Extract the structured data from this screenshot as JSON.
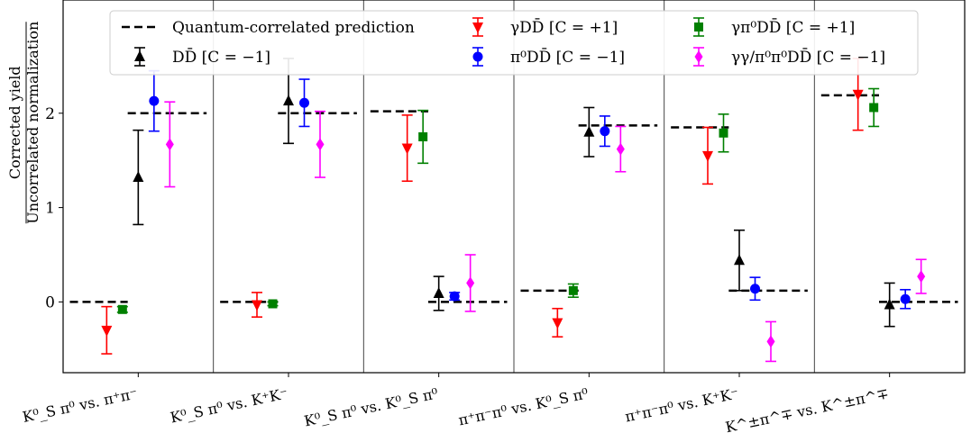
{
  "chart_data": {
    "type": "scatter",
    "title": "",
    "ylabel_numerator": "Corrected yield",
    "ylabel_denominator": "Uncorrelated normalization",
    "xlabel": "",
    "ylim": [
      -0.75,
      3.2
    ],
    "yticks": [
      0,
      1,
      2
    ],
    "grid": false,
    "legend_position": "top-center",
    "categories": [
      "K⁰_S π⁰ vs. π⁺π⁻",
      "K⁰_S π⁰ vs. K⁺K⁻",
      "K⁰_S π⁰ vs. K⁰_S π⁰",
      "π⁺π⁻π⁰ vs. K⁰_S π⁰",
      "π⁺π⁻π⁰ vs. K⁺K⁻",
      "K^±π^∓ vs. K^±π^∓"
    ],
    "predictions": [
      {
        "category": 0,
        "from": -0.65,
        "to": -0.1,
        "value": 0.0
      },
      {
        "category": 0,
        "from": -0.1,
        "to": 0.65,
        "value": 2.0
      },
      {
        "category": 1,
        "from": -0.65,
        "to": -0.1,
        "value": 0.0
      },
      {
        "category": 1,
        "from": -0.1,
        "to": 0.65,
        "value": 2.0
      },
      {
        "category": 2,
        "from": -0.65,
        "to": -0.1,
        "value": 2.02
      },
      {
        "category": 2,
        "from": -0.1,
        "to": 0.65,
        "value": 0.0
      },
      {
        "category": 3,
        "from": -0.65,
        "to": -0.1,
        "value": 0.12
      },
      {
        "category": 3,
        "from": -0.1,
        "to": 0.65,
        "value": 1.87
      },
      {
        "category": 4,
        "from": -0.65,
        "to": -0.1,
        "value": 1.85
      },
      {
        "category": 4,
        "from": -0.1,
        "to": 0.65,
        "value": 0.12
      },
      {
        "category": 5,
        "from": -0.65,
        "to": -0.1,
        "value": 2.19
      },
      {
        "category": 5,
        "from": -0.1,
        "to": 0.65,
        "value": 0.0
      }
    ],
    "legend": {
      "prediction": "Quantum-correlated prediction",
      "entries": [
        {
          "key": "DDbar",
          "name": "DD̄ [C = −1]"
        },
        {
          "key": "gDD",
          "name": "γDD̄ [C = +1]"
        },
        {
          "key": "pi0DD",
          "name": "π⁰DD̄ [C = −1]"
        },
        {
          "key": "gpi0DD",
          "name": "γπ⁰DD̄ [C = +1]"
        },
        {
          "key": "ggDD",
          "name": "γγ/π⁰π⁰DD̄ [C = −1]"
        }
      ]
    },
    "series": [
      {
        "key": "gDD",
        "color": "#ff0000",
        "marker": "triangle-down",
        "offsets": [
          -0.3,
          -0.3,
          -0.3,
          -0.3,
          -0.3,
          -0.3
        ],
        "values": [
          -0.3,
          -0.03,
          1.63,
          -0.22,
          1.55,
          2.2
        ],
        "errors": [
          0.25,
          0.13,
          0.35,
          0.15,
          0.3,
          0.38
        ]
      },
      {
        "key": "gpi0DD",
        "color": "#008000",
        "marker": "square",
        "offsets": [
          -0.15,
          -0.15,
          -0.15,
          -0.15,
          -0.15,
          -0.15
        ],
        "values": [
          -0.08,
          -0.02,
          1.75,
          0.12,
          1.79,
          2.06
        ],
        "errors": [
          0.03,
          0.02,
          0.28,
          0.07,
          0.2,
          0.2
        ]
      },
      {
        "key": "DDbar",
        "color": "#000000",
        "marker": "triangle-up",
        "offsets": [
          0,
          0,
          0,
          0,
          0,
          0
        ],
        "values": [
          1.32,
          2.13,
          0.09,
          1.8,
          0.44,
          -0.03
        ],
        "errors": [
          0.5,
          0.45,
          0.18,
          0.26,
          0.32,
          0.23
        ]
      },
      {
        "key": "pi0DD",
        "color": "#0000ff",
        "marker": "circle",
        "offsets": [
          0.15,
          0.15,
          0.15,
          0.15,
          0.15,
          0.15
        ],
        "values": [
          2.13,
          2.11,
          0.06,
          1.81,
          0.14,
          0.03
        ],
        "errors": [
          0.32,
          0.25,
          0.04,
          0.16,
          0.12,
          0.1
        ]
      },
      {
        "key": "ggDD",
        "color": "#ff00ff",
        "marker": "diamond",
        "offsets": [
          0.3,
          0.3,
          0.3,
          0.3,
          0.3,
          0.3
        ],
        "values": [
          1.67,
          1.67,
          0.2,
          1.62,
          -0.42,
          0.27
        ],
        "errors": [
          0.45,
          0.35,
          0.3,
          0.24,
          0.21,
          0.18
        ]
      }
    ]
  }
}
